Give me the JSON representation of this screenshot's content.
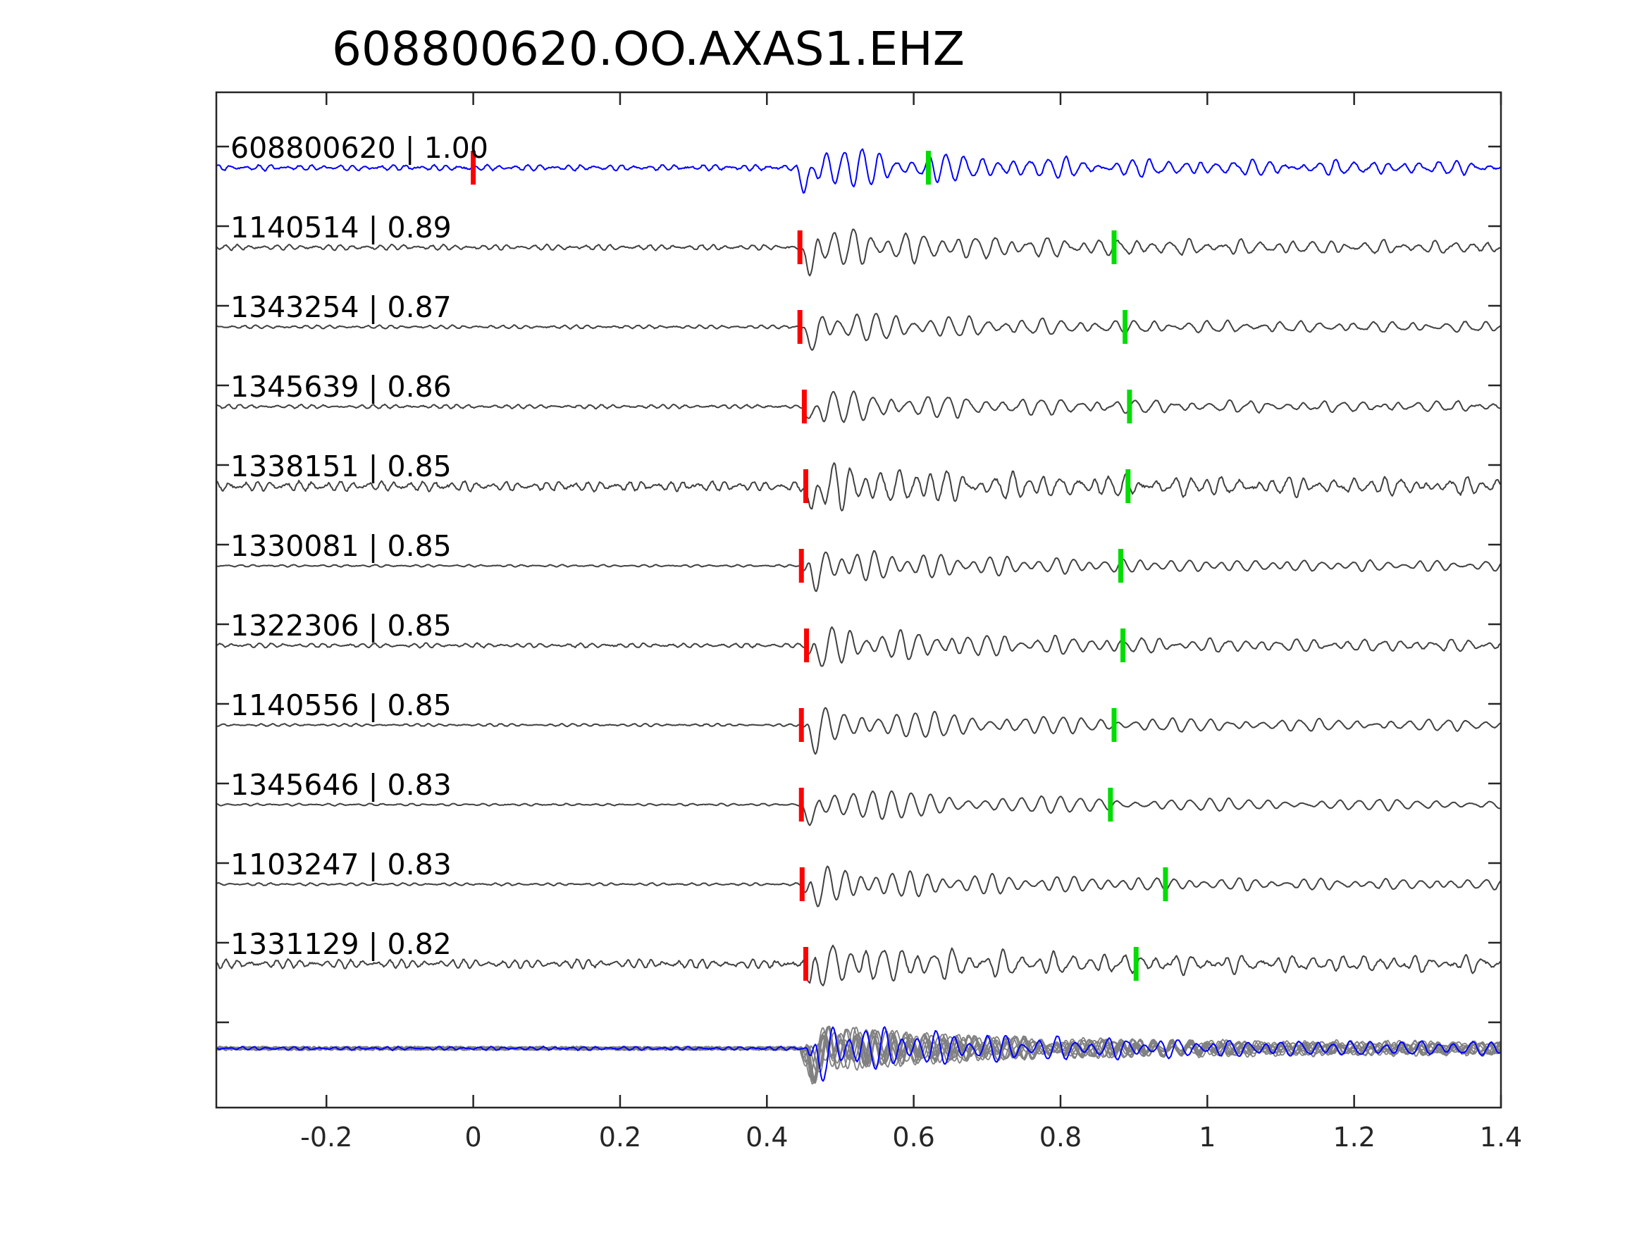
{
  "chart_data": {
    "type": "line",
    "title": "608800620.OO.AXAS1.EHZ",
    "xlabel": "",
    "ylabel": "",
    "xlim": [
      -0.35,
      1.4
    ],
    "xticks": [
      {
        "value": -0.2,
        "label": "-0.2"
      },
      {
        "value": 0,
        "label": "0"
      },
      {
        "value": 0.2,
        "label": "0.2"
      },
      {
        "value": 0.4,
        "label": "0.4"
      },
      {
        "value": 0.6,
        "label": "0.6"
      },
      {
        "value": 0.8,
        "label": "0.8"
      },
      {
        "value": 1.0,
        "label": "1"
      },
      {
        "value": 1.2,
        "label": "1.2"
      },
      {
        "value": 1.4,
        "label": "1.4"
      }
    ],
    "grid": false,
    "colors": {
      "template": "#0000ff",
      "match": "#404040",
      "stack": "#808080",
      "p_pick": "#ff0000",
      "s_pick": "#00dd00",
      "axis": "#262626"
    },
    "series": [
      {
        "name": "608800620",
        "cc": "1.00",
        "label": "608800620 | 1.00",
        "role": "template",
        "p_pick": 0.0,
        "s_pick": 0.62,
        "onset": 0.44,
        "noise": 0.13,
        "amp": 0.95,
        "seed": 3
      },
      {
        "name": "1140514",
        "cc": "0.89",
        "label": "1140514 | 0.89",
        "role": "match",
        "p_pick": 0.445,
        "s_pick": 0.873,
        "onset": 0.445,
        "noise": 0.12,
        "amp": 0.9,
        "seed": 7
      },
      {
        "name": "1343254",
        "cc": "0.87",
        "label": "1343254 | 0.87",
        "role": "match",
        "p_pick": 0.445,
        "s_pick": 0.888,
        "onset": 0.445,
        "noise": 0.08,
        "amp": 0.75,
        "seed": 11
      },
      {
        "name": "1345639",
        "cc": "0.86",
        "label": "1345639 | 0.86",
        "role": "match",
        "p_pick": 0.451,
        "s_pick": 0.894,
        "onset": 0.448,
        "noise": 0.09,
        "amp": 0.75,
        "seed": 13
      },
      {
        "name": "1338151",
        "cc": "0.85",
        "label": "1338151 | 0.85",
        "role": "match",
        "p_pick": 0.453,
        "s_pick": 0.892,
        "onset": 0.45,
        "noise": 0.22,
        "amp": 1.0,
        "seed": 17
      },
      {
        "name": "1330081",
        "cc": "0.85",
        "label": "1330081 | 0.85",
        "role": "match",
        "p_pick": 0.447,
        "s_pick": 0.882,
        "onset": 0.447,
        "noise": 0.05,
        "amp": 0.8,
        "seed": 19
      },
      {
        "name": "1322306",
        "cc": "0.85",
        "label": "1322306 | 0.85",
        "role": "match",
        "p_pick": 0.454,
        "s_pick": 0.885,
        "onset": 0.452,
        "noise": 0.1,
        "amp": 0.85,
        "seed": 23
      },
      {
        "name": "1140556",
        "cc": "0.85",
        "label": "1140556 | 0.85",
        "role": "match",
        "p_pick": 0.447,
        "s_pick": 0.873,
        "onset": 0.447,
        "noise": 0.06,
        "amp": 0.85,
        "seed": 29
      },
      {
        "name": "1345646",
        "cc": "0.83",
        "label": "1345646 | 0.83",
        "role": "match",
        "p_pick": 0.447,
        "s_pick": 0.868,
        "onset": 0.447,
        "noise": 0.05,
        "amp": 0.8,
        "seed": 31
      },
      {
        "name": "1103247",
        "cc": "0.83",
        "label": "1103247 | 0.83",
        "role": "match",
        "p_pick": 0.448,
        "s_pick": 0.943,
        "onset": 0.448,
        "noise": 0.06,
        "amp": 0.8,
        "seed": 37
      },
      {
        "name": "1331129",
        "cc": "0.82",
        "label": "1331129 | 0.82",
        "role": "match",
        "p_pick": 0.453,
        "s_pick": 0.903,
        "onset": 0.45,
        "noise": 0.2,
        "amp": 0.95,
        "seed": 41
      }
    ],
    "stack": {
      "onset": 0.445,
      "template_seed": 5,
      "overlay_count": 10
    }
  }
}
